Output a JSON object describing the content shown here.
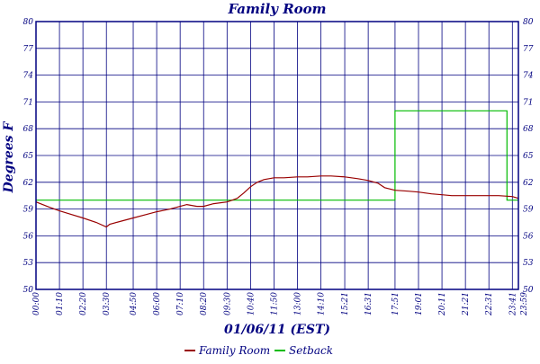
{
  "chart_data": {
    "type": "line",
    "title": "Family Room",
    "xlabel": "01/06/11 (EST)",
    "ylabel": "Degrees F",
    "ylim": [
      50,
      80
    ],
    "y_ticks": [
      50,
      53,
      56,
      59,
      62,
      65,
      68,
      71,
      74,
      77,
      80
    ],
    "x_ticks": [
      "00:00",
      "01:10",
      "02:20",
      "03:30",
      "04:50",
      "06:00",
      "07:10",
      "08:20",
      "09:30",
      "10:40",
      "11:50",
      "13:00",
      "14:10",
      "15:21",
      "16:31",
      "17:51",
      "19:01",
      "20:11",
      "21:21",
      "22:31",
      "23:41",
      "23:59"
    ],
    "grid": true,
    "legend_position": "bottom",
    "colors": {
      "grid": "#000080",
      "text": "#000080",
      "family_room": "#990000",
      "setback": "#00bb00"
    },
    "series": [
      {
        "name": "Family Room",
        "x": [
          "00:00",
          "00:40",
          "01:10",
          "01:45",
          "02:20",
          "03:00",
          "03:30",
          "03:40",
          "04:20",
          "04:50",
          "05:30",
          "06:00",
          "06:40",
          "07:10",
          "07:30",
          "08:00",
          "08:20",
          "08:50",
          "09:30",
          "10:00",
          "10:20",
          "10:40",
          "11:00",
          "11:20",
          "11:50",
          "12:20",
          "13:00",
          "13:30",
          "14:10",
          "14:40",
          "15:21",
          "16:00",
          "16:31",
          "17:00",
          "17:20",
          "17:51",
          "18:30",
          "19:01",
          "19:40",
          "20:11",
          "20:40",
          "21:21",
          "22:00",
          "22:31",
          "23:00",
          "23:41",
          "23:59"
        ],
        "values": [
          59.8,
          59.2,
          58.8,
          58.4,
          58.0,
          57.5,
          57.0,
          57.3,
          57.7,
          58.0,
          58.4,
          58.7,
          59.0,
          59.3,
          59.5,
          59.3,
          59.3,
          59.6,
          59.8,
          60.2,
          60.8,
          61.5,
          62.0,
          62.3,
          62.5,
          62.5,
          62.6,
          62.6,
          62.7,
          62.7,
          62.6,
          62.4,
          62.2,
          61.9,
          61.4,
          61.1,
          61.0,
          60.9,
          60.7,
          60.6,
          60.5,
          60.5,
          60.5,
          60.5,
          60.5,
          60.4,
          60.2
        ]
      },
      {
        "name": "Setback",
        "x": [
          "00:00",
          "17:51",
          "17:51",
          "23:25",
          "23:25",
          "23:59"
        ],
        "values": [
          60.0,
          60.0,
          70.0,
          70.0,
          60.0,
          60.0
        ]
      }
    ]
  }
}
